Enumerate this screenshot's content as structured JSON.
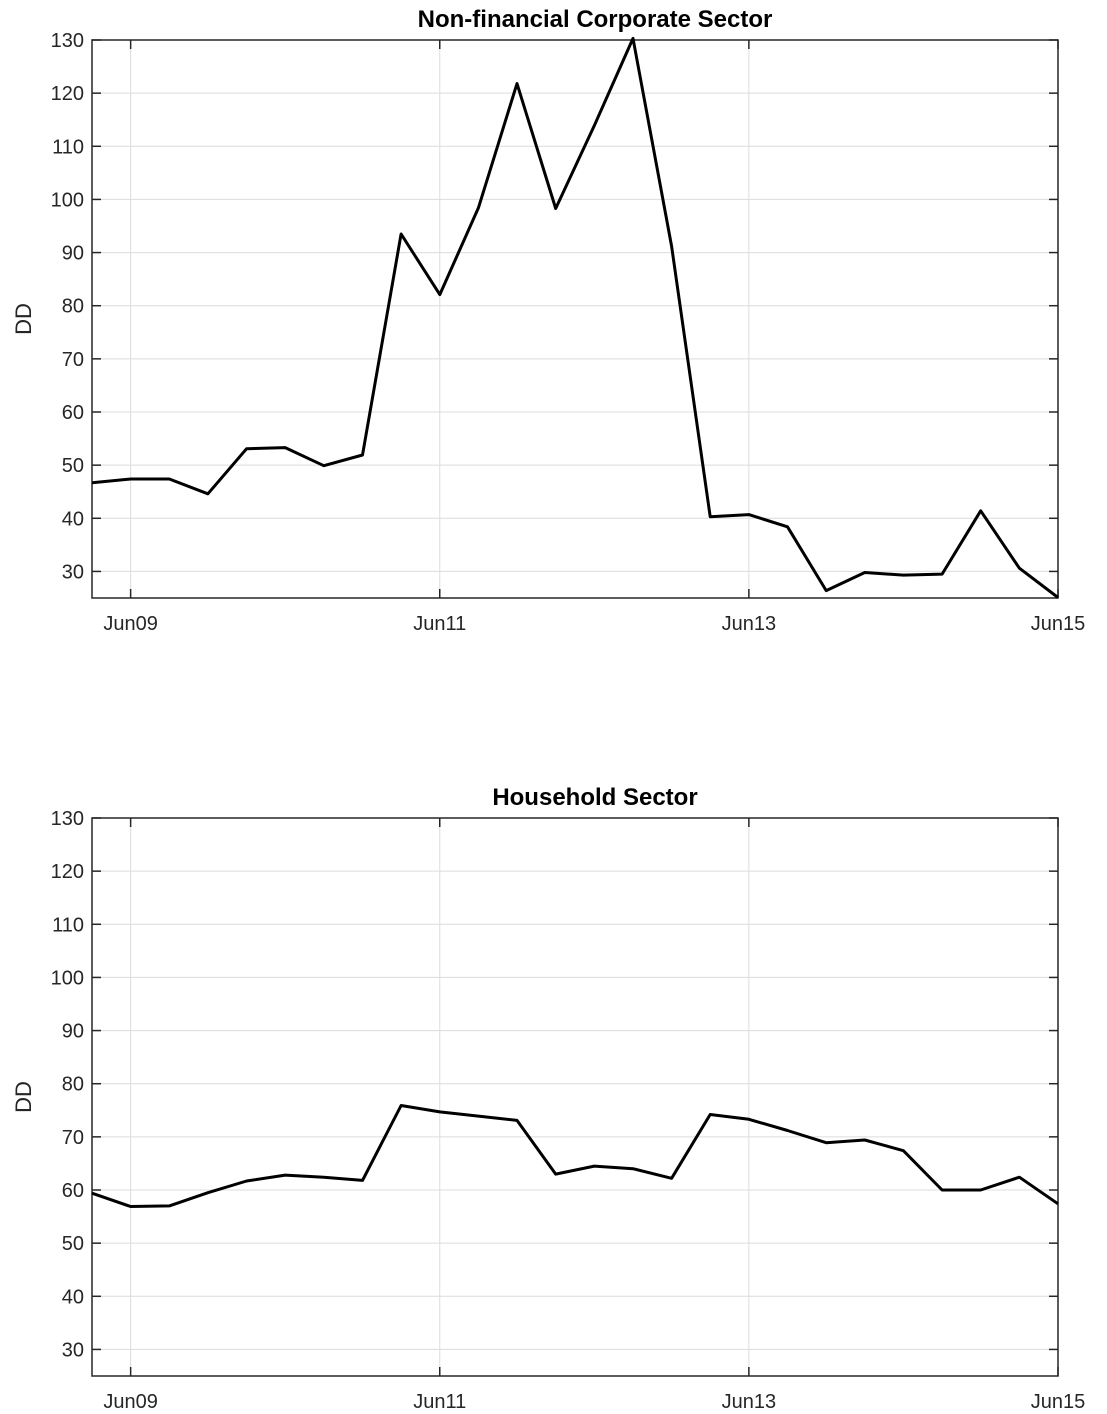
{
  "chart_data": [
    {
      "type": "line",
      "title": "Non-financial Corporate Sector",
      "xlabel": "",
      "ylabel": "DD",
      "ylim": [
        25,
        130
      ],
      "yticks": [
        30,
        40,
        50,
        60,
        70,
        80,
        90,
        100,
        110,
        120,
        130
      ],
      "xlim": [
        "2009-03",
        "2015-06"
      ],
      "xticks": [
        "Jun09",
        "Jun11",
        "Jun13",
        "Jun15"
      ],
      "grid": true,
      "x": [
        "2009-03",
        "2009-06",
        "2009-09",
        "2009-12",
        "2010-03",
        "2010-06",
        "2010-09",
        "2010-12",
        "2011-03",
        "2011-06",
        "2011-09",
        "2011-12",
        "2012-03",
        "2012-06",
        "2012-09",
        "2012-12",
        "2013-03",
        "2013-06",
        "2013-09",
        "2013-12",
        "2014-03",
        "2014-06",
        "2014-09",
        "2014-12",
        "2015-03",
        "2015-06"
      ],
      "series": [
        {
          "values": [
            46.7,
            47.4,
            47.4,
            44.6,
            53.1,
            53.3,
            49.9,
            51.9,
            93.5,
            82.1,
            98.4,
            121.8,
            98.3,
            113.9,
            130.3,
            91.2,
            40.3,
            40.7,
            38.4,
            26.4,
            29.8,
            29.3,
            29.5,
            41.4,
            30.6,
            25.1
          ]
        }
      ]
    },
    {
      "type": "line",
      "title": "Household Sector",
      "xlabel": "",
      "ylabel": "DD",
      "ylim": [
        25,
        130
      ],
      "yticks": [
        30,
        40,
        50,
        60,
        70,
        80,
        90,
        100,
        110,
        120,
        130
      ],
      "xlim": [
        "2009-03",
        "2015-06"
      ],
      "xticks": [
        "Jun09",
        "Jun11",
        "Jun13",
        "Jun15"
      ],
      "grid": true,
      "x": [
        "2009-03",
        "2009-06",
        "2009-09",
        "2009-12",
        "2010-03",
        "2010-06",
        "2010-09",
        "2010-12",
        "2011-03",
        "2011-06",
        "2011-09",
        "2011-12",
        "2012-03",
        "2012-06",
        "2012-09",
        "2012-12",
        "2013-03",
        "2013-06",
        "2013-09",
        "2013-12",
        "2014-03",
        "2014-06",
        "2014-09",
        "2014-12",
        "2015-03",
        "2015-06"
      ],
      "series": [
        {
          "values": [
            59.4,
            56.9,
            57.0,
            59.5,
            61.7,
            62.8,
            62.4,
            61.8,
            75.9,
            74.7,
            73.9,
            73.1,
            63.0,
            64.5,
            64.0,
            62.2,
            74.2,
            73.3,
            71.2,
            68.9,
            69.4,
            67.4,
            60.0,
            60.0,
            62.4,
            57.4
          ]
        }
      ]
    }
  ]
}
